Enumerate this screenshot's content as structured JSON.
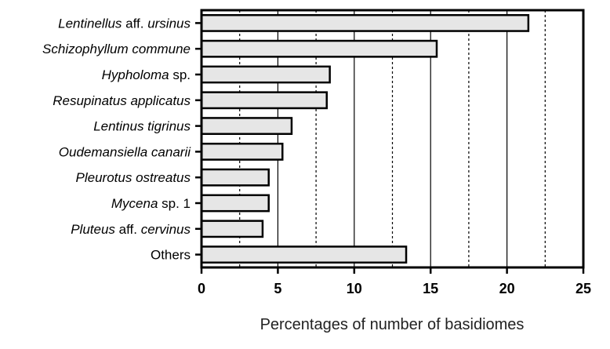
{
  "chart_data": {
    "type": "bar",
    "orientation": "horizontal",
    "xlabel": "Percentages of number of basidiomes",
    "ylabel": "",
    "xlim": [
      0,
      25
    ],
    "xticks": [
      "0",
      "5",
      "10",
      "15",
      "20",
      "25"
    ],
    "grid": "vertical gridlines: solid at 5, 10, 15, 20; dotted at 2.5, 7.5, 12.5, 17.5, 22.5",
    "bar_color": "#e6e6e6",
    "categories": [
      {
        "label": [
          {
            "text": "Lentinellus",
            "italic": true
          },
          {
            "text": " aff. ",
            "italic": false
          },
          {
            "text": "ursinus",
            "italic": true
          }
        ]
      },
      {
        "label": [
          {
            "text": "Schizophyllum commune",
            "italic": true
          }
        ]
      },
      {
        "label": [
          {
            "text": "Hypholoma",
            "italic": true
          },
          {
            "text": " sp.",
            "italic": false
          }
        ]
      },
      {
        "label": [
          {
            "text": "Resupinatus applicatus",
            "italic": true
          }
        ]
      },
      {
        "label": [
          {
            "text": "Lentinus tigrinus",
            "italic": true
          }
        ]
      },
      {
        "label": [
          {
            "text": "Oudemansiella canarii",
            "italic": true
          }
        ]
      },
      {
        "label": [
          {
            "text": "Pleurotus ostreatus",
            "italic": true
          }
        ]
      },
      {
        "label": [
          {
            "text": "Mycena",
            "italic": true
          },
          {
            "text": " sp. 1",
            "italic": false
          }
        ]
      },
      {
        "label": [
          {
            "text": "Pluteus",
            "italic": true
          },
          {
            "text": " aff. ",
            "italic": false
          },
          {
            "text": "cervinus",
            "italic": true
          }
        ]
      },
      {
        "label": [
          {
            "text": "Others",
            "italic": false
          }
        ]
      }
    ],
    "values": [
      21.4,
      15.4,
      8.4,
      8.2,
      5.9,
      5.3,
      4.4,
      4.4,
      4.0,
      13.4
    ]
  }
}
